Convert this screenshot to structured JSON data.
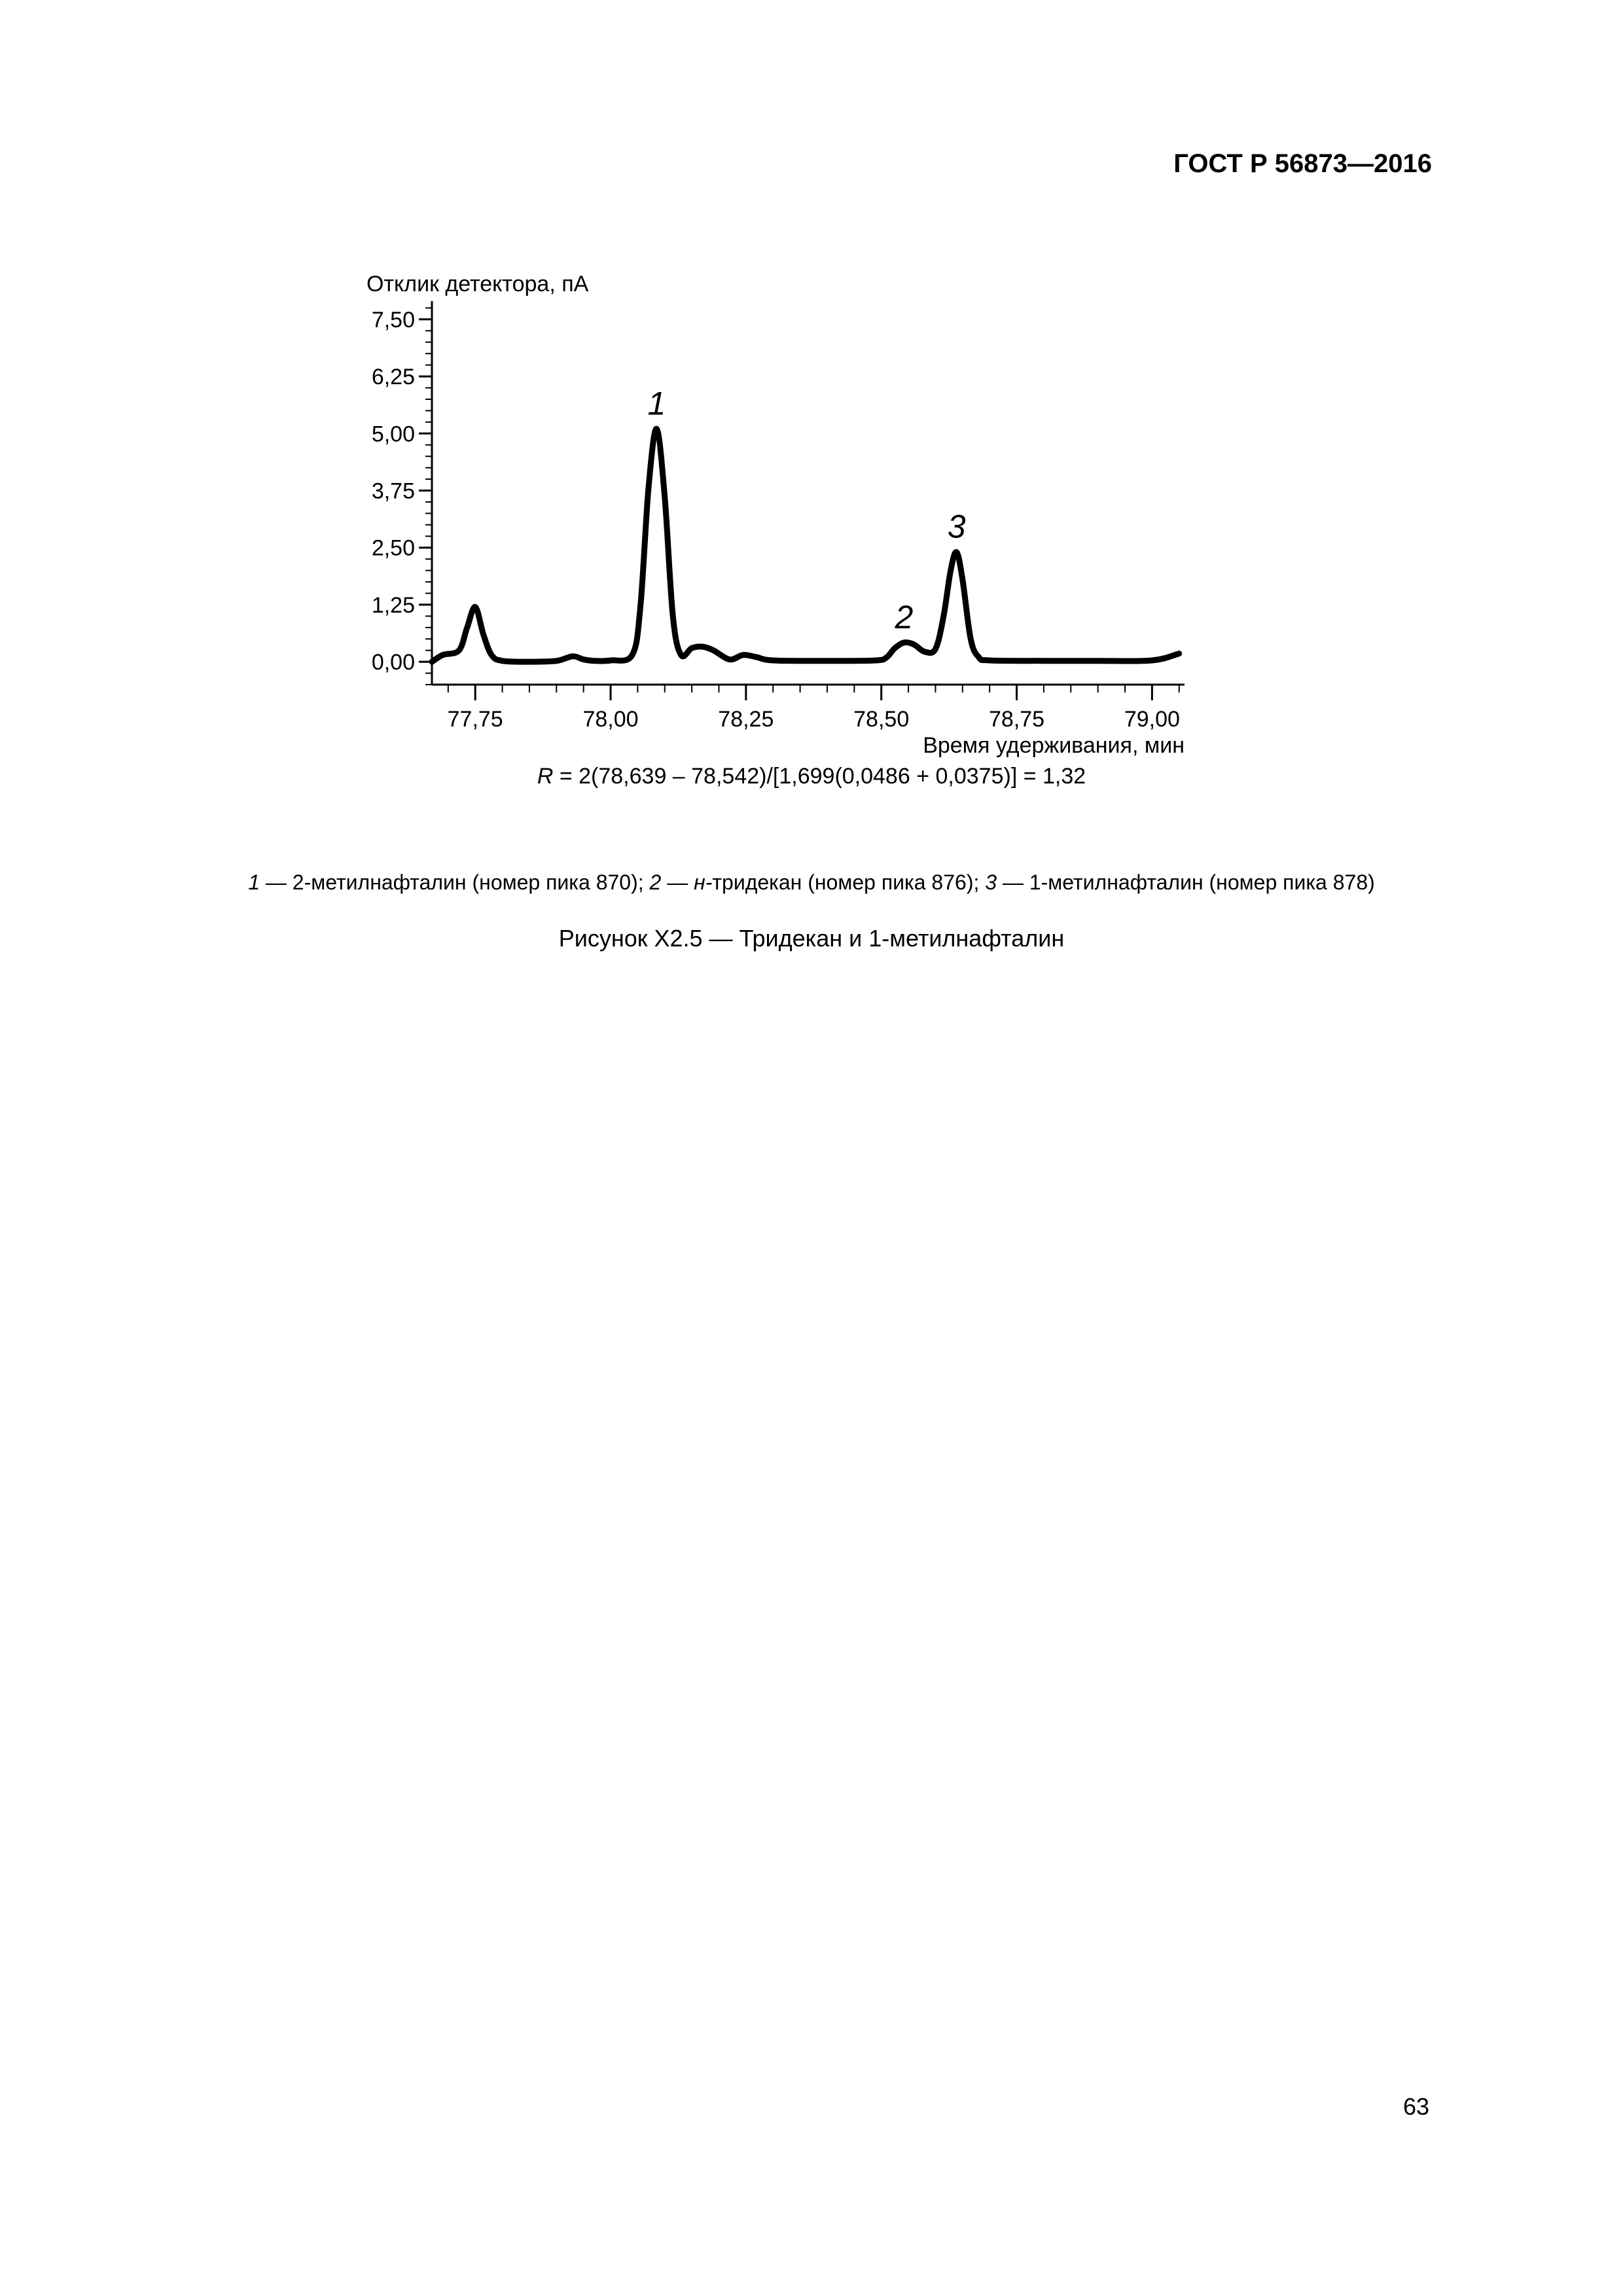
{
  "header": {
    "standard": "ГОСТ Р 56873—2016"
  },
  "chart_data": {
    "type": "line",
    "title": "",
    "ylabel": "Отклик детектора, пА",
    "xlabel": "Время удерживания, мин",
    "xlim": [
      77.67,
      79.06
    ],
    "ylim": [
      -0.5,
      7.9
    ],
    "y_ticks": [
      0.0,
      1.25,
      2.5,
      3.75,
      5.0,
      6.25,
      7.5
    ],
    "y_tick_labels": [
      "0,00",
      "1,25",
      "2,50",
      "3,75",
      "5,00",
      "6,25",
      "7,50"
    ],
    "x_ticks": [
      77.75,
      78.0,
      78.25,
      78.5,
      78.75,
      79.0
    ],
    "x_tick_labels": [
      "77,75",
      "78,00",
      "78,25",
      "78,50",
      "78,75",
      "79,00"
    ],
    "grid": false,
    "series": [
      {
        "x": [
          77.67,
          77.69,
          77.72,
          77.735,
          77.75,
          77.765,
          77.78,
          77.8,
          77.85,
          77.9,
          77.93,
          77.95,
          77.97,
          78.0,
          78.04,
          78.055,
          78.07,
          78.085,
          78.1,
          78.115,
          78.13,
          78.15,
          78.17,
          78.19,
          78.22,
          78.245,
          78.27,
          78.3,
          78.4,
          78.49,
          78.51,
          78.525,
          78.542,
          78.56,
          78.58,
          78.6,
          78.615,
          78.628,
          78.639,
          78.65,
          78.665,
          78.68,
          78.7,
          78.8,
          78.9,
          79.0,
          79.05
        ],
        "y": [
          0.0,
          0.15,
          0.25,
          0.75,
          1.2,
          0.6,
          0.15,
          0.02,
          0.0,
          0.02,
          0.12,
          0.05,
          0.02,
          0.03,
          0.15,
          1.2,
          3.8,
          5.1,
          3.6,
          1.0,
          0.15,
          0.3,
          0.33,
          0.25,
          0.05,
          0.15,
          0.1,
          0.03,
          0.02,
          0.03,
          0.1,
          0.3,
          0.42,
          0.38,
          0.22,
          0.28,
          1.0,
          2.0,
          2.4,
          1.8,
          0.5,
          0.1,
          0.03,
          0.02,
          0.02,
          0.03,
          0.18
        ]
      }
    ],
    "annotations": [
      {
        "text": "1",
        "x": 78.085,
        "y": 5.1
      },
      {
        "text": "2",
        "x": 78.542,
        "y": 0.42
      },
      {
        "text": "3",
        "x": 78.639,
        "y": 2.4
      }
    ]
  },
  "formula": {
    "var": "R",
    "rest": " = 2(78,639 – 78,542)/[1,699(0,0486 + 0,0375)] = 1,32"
  },
  "legend": {
    "items": [
      {
        "num": "1",
        "dash": " — ",
        "pre": "",
        "text": "2-метилнафталин (номер пика 870)",
        "sep": "; "
      },
      {
        "num": "2",
        "dash": " — ",
        "pre": "н-",
        "text": "тридекан (номер пика 876)",
        "sep": "; "
      },
      {
        "num": "3",
        "dash": " — ",
        "pre": "",
        "text": "1-метилнафталин (номер пика 878)",
        "sep": ""
      }
    ]
  },
  "caption": "Рисунок Х2.5 — Тридекан и 1-метилнафталин",
  "page_number": "63"
}
